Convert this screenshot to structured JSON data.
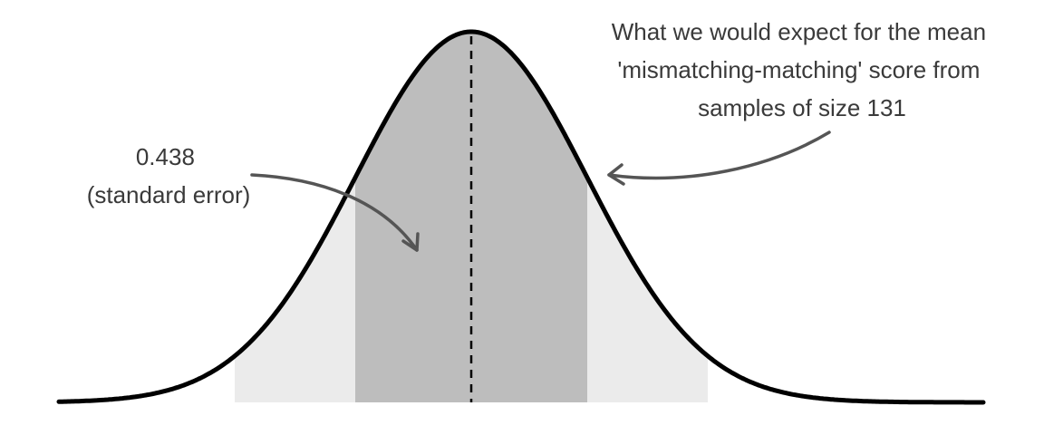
{
  "annotations": {
    "sampling_mean": {
      "lines": [
        "What we would expect for the mean",
        "'mismatching-matching' score from",
        "samples of size 131"
      ]
    },
    "standard_error": {
      "lines": [
        "0.438",
        "(standard error)"
      ]
    }
  },
  "colors": {
    "curve": "#000000",
    "inner_band": "#bdbdbd",
    "outer_band": "#ebebeb",
    "arrow": "#555555",
    "text": "#3a3a3a"
  }
}
